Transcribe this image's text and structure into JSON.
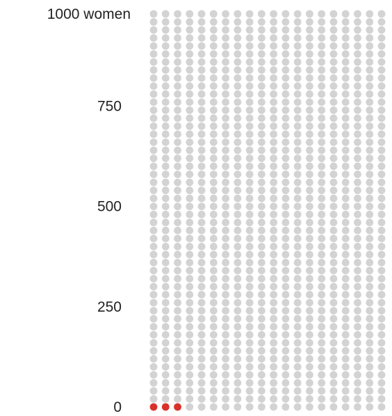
{
  "chart_data": {
    "type": "waffle",
    "total": 1000,
    "highlighted": 3,
    "columns": 20,
    "rows": 50,
    "y_ticks": [
      {
        "value": 1000,
        "label": "1000 women"
      },
      {
        "value": 750,
        "label": "750"
      },
      {
        "value": 500,
        "label": "500"
      },
      {
        "value": 250,
        "label": "250"
      },
      {
        "value": 0,
        "label": "0"
      }
    ],
    "colors": {
      "base": "#d3d3d3",
      "highlight": "#d9322b"
    }
  }
}
